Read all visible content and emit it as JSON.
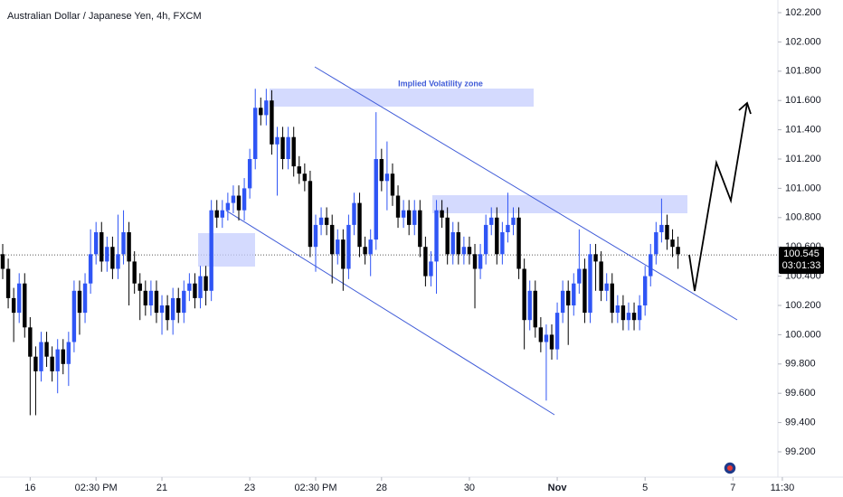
{
  "chart_data": {
    "type": "candlestick",
    "title": "Australian Dollar / Japanese Yen, 4h, FXCM",
    "annotation": "Implied Volatility zone",
    "up_color": "#2f55f5",
    "down_color": "#000000",
    "last_price": 100.545,
    "countdown": "03:01:33",
    "ylim": [
      99.1,
      102.3
    ],
    "yticks": [
      {
        "value": 99.2,
        "label": "99.200"
      },
      {
        "value": 99.4,
        "label": "99.400"
      },
      {
        "value": 99.6,
        "label": "99.600"
      },
      {
        "value": 99.8,
        "label": "99.800"
      },
      {
        "value": 100.0,
        "label": "100.000"
      },
      {
        "value": 100.2,
        "label": "100.200"
      },
      {
        "value": 100.4,
        "label": "100.400"
      },
      {
        "value": 100.6,
        "label": "100.600"
      },
      {
        "value": 100.8,
        "label": "100.800"
      },
      {
        "value": 101.0,
        "label": "101.000"
      },
      {
        "value": 101.2,
        "label": "101.200"
      },
      {
        "value": 101.4,
        "label": "101.400"
      },
      {
        "value": 101.6,
        "label": "101.600"
      },
      {
        "value": 101.8,
        "label": "101.800"
      },
      {
        "value": 102.0,
        "label": "102.000"
      },
      {
        "value": 102.2,
        "label": "102.200"
      }
    ],
    "xticks": [
      {
        "value": 5,
        "label": "16"
      },
      {
        "value": 17,
        "label": "02:30 PM"
      },
      {
        "value": 29,
        "label": "21"
      },
      {
        "value": 45,
        "label": "23"
      },
      {
        "value": 57,
        "label": "02:30 PM"
      },
      {
        "value": 69,
        "label": "28"
      },
      {
        "value": 85,
        "label": "30"
      },
      {
        "value": 101,
        "label": "Nov"
      },
      {
        "value": 117,
        "label": "5"
      },
      {
        "value": 133,
        "label": "7"
      },
      {
        "value": 142,
        "label": "11:30"
      }
    ],
    "open": [
      100.55,
      100.45,
      100.25,
      100.15,
      100.35,
      100.05,
      99.85,
      99.75,
      99.95,
      99.85,
      99.75,
      99.9,
      99.8,
      99.95,
      100.3,
      100.15,
      100.35,
      100.55,
      100.7,
      100.5,
      100.6,
      100.45,
      100.55,
      100.7,
      100.5,
      100.35,
      100.3,
      100.2,
      100.3,
      100.15,
      100.2,
      100.1,
      100.25,
      100.15,
      100.3,
      100.35,
      100.25,
      100.4,
      100.3,
      100.85,
      100.8,
      100.85,
      100.9,
      100.95,
      100.85,
      101.0,
      101.2,
      101.55,
      101.5,
      101.6,
      101.3,
      101.35,
      101.2,
      101.35,
      101.15,
      101.1,
      101.05,
      100.6,
      100.75,
      100.8,
      100.75,
      100.55,
      100.65,
      100.45,
      100.75,
      100.9,
      100.6,
      100.55,
      100.65,
      101.2,
      101.05,
      101.1,
      100.95,
      100.8,
      100.85,
      100.75,
      100.85,
      100.6,
      100.4,
      100.5,
      100.85,
      100.8,
      100.55,
      100.7,
      100.55,
      100.6,
      100.55,
      100.45,
      100.55,
      100.75,
      100.8,
      100.55,
      100.7,
      100.75,
      100.8,
      100.45,
      100.1,
      100.3,
      100.05,
      99.95,
      100.0,
      99.9,
      100.15,
      100.3,
      100.2,
      100.35,
      100.45,
      100.15,
      100.55,
      100.5,
      100.3,
      100.35,
      100.15,
      100.2,
      100.1,
      100.15,
      100.1,
      100.2,
      100.4,
      100.55,
      100.7,
      100.75,
      100.65,
      100.6
    ],
    "high": [
      100.62,
      100.52,
      100.32,
      100.42,
      100.42,
      100.12,
      99.92,
      100.02,
      100.02,
      99.92,
      99.97,
      99.97,
      100.02,
      100.37,
      100.37,
      100.42,
      100.72,
      100.77,
      100.77,
      100.67,
      100.67,
      100.82,
      100.85,
      100.77,
      100.57,
      100.42,
      100.37,
      100.37,
      100.37,
      100.27,
      100.27,
      100.32,
      100.32,
      100.37,
      100.42,
      100.42,
      100.47,
      100.47,
      100.92,
      100.92,
      100.92,
      100.97,
      101.02,
      101.02,
      101.07,
      101.27,
      101.68,
      101.62,
      101.68,
      101.67,
      101.42,
      101.42,
      101.42,
      101.42,
      101.22,
      101.17,
      101.12,
      100.82,
      100.87,
      100.87,
      100.82,
      100.72,
      100.72,
      100.82,
      100.97,
      100.97,
      100.67,
      100.72,
      101.52,
      101.27,
      101.32,
      101.17,
      101.02,
      100.92,
      100.92,
      100.92,
      100.92,
      100.67,
      100.57,
      100.92,
      100.92,
      100.87,
      100.77,
      100.77,
      100.67,
      100.67,
      100.62,
      100.62,
      100.82,
      100.87,
      100.87,
      100.77,
      100.97,
      100.87,
      100.87,
      100.52,
      100.37,
      100.37,
      100.12,
      100.07,
      100.07,
      100.22,
      100.37,
      100.37,
      100.42,
      100.72,
      100.52,
      100.62,
      100.62,
      100.57,
      100.42,
      100.42,
      100.27,
      100.27,
      100.22,
      100.22,
      100.27,
      100.47,
      100.62,
      100.77,
      100.93,
      100.82,
      100.72,
      100.67
    ],
    "low": [
      100.38,
      100.18,
      99.95,
      100.08,
      99.98,
      99.45,
      99.45,
      99.68,
      99.78,
      99.68,
      99.6,
      99.73,
      99.65,
      99.88,
      100.0,
      100.08,
      100.28,
      100.48,
      100.43,
      100.43,
      100.38,
      100.38,
      100.48,
      100.2,
      100.28,
      100.1,
      100.13,
      100.13,
      100.08,
      100.0,
      100.03,
      100.0,
      100.08,
      100.08,
      100.23,
      100.18,
      100.18,
      100.2,
      100.23,
      100.73,
      100.73,
      100.78,
      100.83,
      100.78,
      100.78,
      100.93,
      101.13,
      101.43,
      101.43,
      101.23,
      100.95,
      101.13,
      101.13,
      101.08,
      101.03,
      100.98,
      100.53,
      100.43,
      100.68,
      100.68,
      100.35,
      100.48,
      100.3,
      100.38,
      100.68,
      100.53,
      100.48,
      100.4,
      100.58,
      100.98,
      100.85,
      100.88,
      100.73,
      100.73,
      100.68,
      100.68,
      100.53,
      100.33,
      100.33,
      100.28,
      100.73,
      100.48,
      100.48,
      100.48,
      100.48,
      100.48,
      100.18,
      100.38,
      100.48,
      100.68,
      100.48,
      100.48,
      100.63,
      100.68,
      100.38,
      99.9,
      100.03,
      99.98,
      99.88,
      99.55,
      99.83,
      99.83,
      100.08,
      99.93,
      100.13,
      100.28,
      100.08,
      100.08,
      100.3,
      100.23,
      100.23,
      100.08,
      100.08,
      100.03,
      100.03,
      100.03,
      100.03,
      100.13,
      100.33,
      100.48,
      100.63,
      100.58,
      100.53,
      100.45
    ],
    "close": [
      100.45,
      100.25,
      100.15,
      100.35,
      100.05,
      99.85,
      99.75,
      99.95,
      99.85,
      99.75,
      99.9,
      99.8,
      99.95,
      100.3,
      100.15,
      100.35,
      100.55,
      100.7,
      100.5,
      100.6,
      100.45,
      100.55,
      100.7,
      100.5,
      100.35,
      100.3,
      100.2,
      100.3,
      100.15,
      100.2,
      100.1,
      100.25,
      100.15,
      100.3,
      100.35,
      100.25,
      100.4,
      100.3,
      100.85,
      100.8,
      100.85,
      100.9,
      100.95,
      100.85,
      101.0,
      101.2,
      101.55,
      101.5,
      101.6,
      101.3,
      101.35,
      101.2,
      101.35,
      101.15,
      101.1,
      101.05,
      100.6,
      100.75,
      100.8,
      100.75,
      100.55,
      100.65,
      100.45,
      100.75,
      100.9,
      100.6,
      100.55,
      100.65,
      101.2,
      101.05,
      101.1,
      100.95,
      100.8,
      100.85,
      100.75,
      100.85,
      100.6,
      100.4,
      100.5,
      100.85,
      100.8,
      100.55,
      100.7,
      100.55,
      100.6,
      100.55,
      100.45,
      100.55,
      100.75,
      100.8,
      100.55,
      100.7,
      100.75,
      100.8,
      100.45,
      100.1,
      100.3,
      100.05,
      99.95,
      100.0,
      99.9,
      100.15,
      100.3,
      100.2,
      100.35,
      100.45,
      100.15,
      100.55,
      100.5,
      100.3,
      100.35,
      100.15,
      100.2,
      100.1,
      100.15,
      100.1,
      100.2,
      100.4,
      100.55,
      100.7,
      100.75,
      100.65,
      100.6,
      100.55
    ]
  }
}
